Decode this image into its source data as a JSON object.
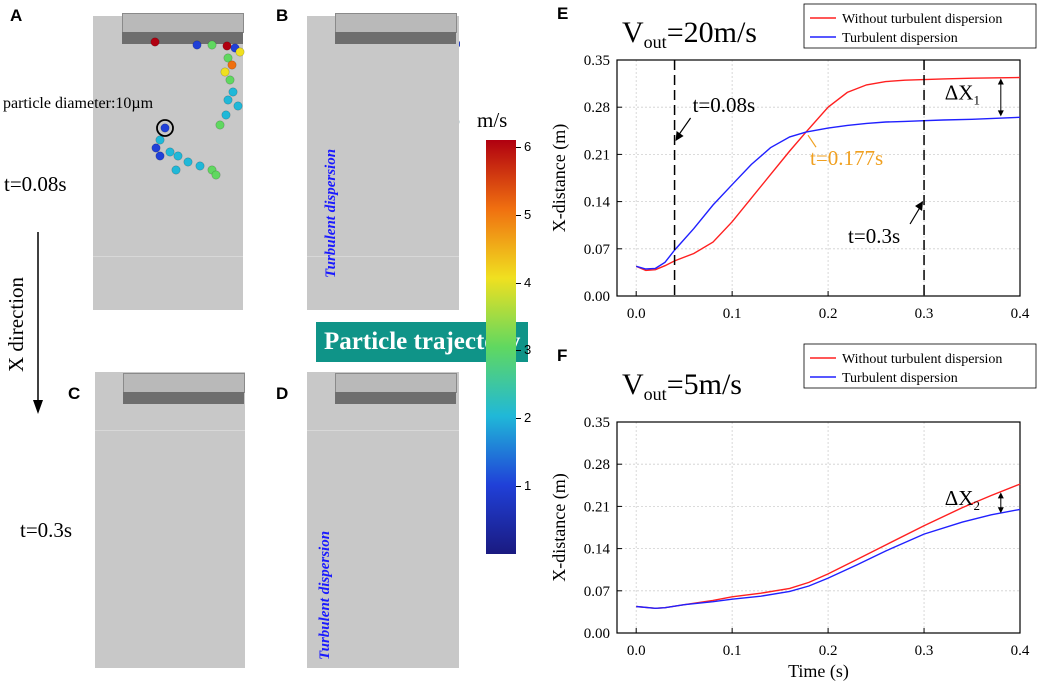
{
  "panels": {
    "a": {
      "letter": "A",
      "time_label": "t=0.08s",
      "diameter_note": "particle diameter:10µm"
    },
    "b": {
      "letter": "B",
      "mode_label": "Turbulent dispersion"
    },
    "c": {
      "letter": "C",
      "time_label": "t=0.3s"
    },
    "d": {
      "letter": "D",
      "mode_label": "Turbulent dispersion"
    },
    "e": {
      "letter": "E"
    },
    "f": {
      "letter": "F"
    }
  },
  "direction_label": "X direction",
  "banner_label": "Particle trajectory",
  "colorbar": {
    "unit": "m/s",
    "ticks": [
      "1",
      "2",
      "3",
      "4",
      "5",
      "6"
    ],
    "min": 0,
    "max": 6.1,
    "colors": [
      "#1a1a80",
      "#2040d8",
      "#20b8d8",
      "#60d860",
      "#f0e020",
      "#f07010",
      "#b00010"
    ]
  },
  "series_colors": {
    "without": "#ff2020",
    "turbulent": "#2020ff"
  },
  "chart_data": [
    {
      "type": "line",
      "panel": "E",
      "title": "V_out =20m/s",
      "title_main": "V",
      "title_sub": "out",
      "title_rest": "=20m/s",
      "xlabel": "",
      "ylabel": "X-distance (m)",
      "xlim": [
        -0.02,
        0.4
      ],
      "ylim": [
        0.0,
        0.35
      ],
      "xticks": [
        "0.0",
        "0.1",
        "0.2",
        "0.3",
        "0.4"
      ],
      "yticks": [
        "0.00",
        "0.07",
        "0.14",
        "0.21",
        "0.28",
        "0.35"
      ],
      "series": [
        {
          "name": "Without turbulent dispersion",
          "key": "without",
          "x": [
            0,
            0.01,
            0.02,
            0.03,
            0.04,
            0.06,
            0.08,
            0.1,
            0.12,
            0.14,
            0.16,
            0.177,
            0.2,
            0.22,
            0.24,
            0.26,
            0.28,
            0.3,
            0.32,
            0.35,
            0.4
          ],
          "y": [
            0.044,
            0.038,
            0.039,
            0.045,
            0.052,
            0.063,
            0.08,
            0.11,
            0.145,
            0.18,
            0.215,
            0.243,
            0.28,
            0.302,
            0.313,
            0.318,
            0.32,
            0.321,
            0.322,
            0.323,
            0.324
          ]
        },
        {
          "name": "Turbulent dispersion",
          "key": "turbulent",
          "x": [
            0,
            0.01,
            0.02,
            0.03,
            0.04,
            0.06,
            0.08,
            0.1,
            0.12,
            0.14,
            0.16,
            0.177,
            0.2,
            0.22,
            0.24,
            0.26,
            0.28,
            0.3,
            0.32,
            0.35,
            0.4
          ],
          "y": [
            0.044,
            0.04,
            0.041,
            0.05,
            0.068,
            0.1,
            0.135,
            0.165,
            0.195,
            0.22,
            0.236,
            0.243,
            0.249,
            0.253,
            0.256,
            0.258,
            0.259,
            0.26,
            0.261,
            0.262,
            0.265
          ]
        }
      ],
      "legend": "top-right",
      "vlines": [
        0.04,
        0.3
      ],
      "annotations": {
        "t1": "t=0.08s",
        "t2": "t=0.3s",
        "cross": "t=0.177s",
        "cross_x": 0.177,
        "cross_y": 0.243,
        "delta_main": "ΔX",
        "delta_sub": "1",
        "delta_x": 0.38,
        "delta_y1": 0.324,
        "delta_y2": 0.265,
        "cross_color": "#f0a020"
      }
    },
    {
      "type": "line",
      "panel": "F",
      "title": "V_out =5m/s",
      "title_main": "V",
      "title_sub": "out",
      "title_rest": "=5m/s",
      "xlabel": "Time (s)",
      "ylabel": "X-distance (m)",
      "xlim": [
        -0.02,
        0.4
      ],
      "ylim": [
        0.0,
        0.35
      ],
      "xticks": [
        "0.0",
        "0.1",
        "0.2",
        "0.3",
        "0.4"
      ],
      "yticks": [
        "0.00",
        "0.07",
        "0.14",
        "0.21",
        "0.28",
        "0.35"
      ],
      "series": [
        {
          "name": "Without turbulent dispersion",
          "key": "without",
          "x": [
            0,
            0.02,
            0.03,
            0.05,
            0.08,
            0.1,
            0.13,
            0.16,
            0.18,
            0.2,
            0.23,
            0.26,
            0.3,
            0.34,
            0.37,
            0.4
          ],
          "y": [
            0.044,
            0.041,
            0.042,
            0.047,
            0.054,
            0.06,
            0.066,
            0.074,
            0.084,
            0.098,
            0.122,
            0.146,
            0.178,
            0.208,
            0.228,
            0.247
          ]
        },
        {
          "name": "Turbulent dispersion",
          "key": "turbulent",
          "x": [
            0,
            0.02,
            0.03,
            0.05,
            0.08,
            0.1,
            0.13,
            0.16,
            0.18,
            0.2,
            0.23,
            0.26,
            0.3,
            0.34,
            0.37,
            0.4
          ],
          "y": [
            0.044,
            0.041,
            0.042,
            0.047,
            0.052,
            0.056,
            0.061,
            0.069,
            0.078,
            0.091,
            0.113,
            0.136,
            0.164,
            0.184,
            0.196,
            0.205
          ]
        }
      ],
      "legend": "top-right",
      "annotations": {
        "delta_main": "ΔX",
        "delta_sub": "2",
        "delta_x": 0.38,
        "delta_y1": 0.235,
        "delta_y2": 0.197
      }
    }
  ]
}
